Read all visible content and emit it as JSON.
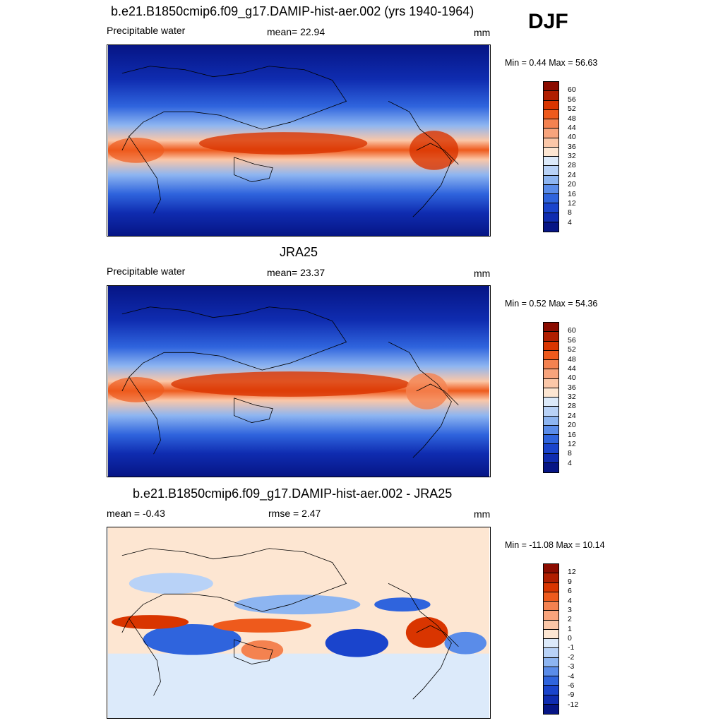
{
  "season": "DJF",
  "panels": [
    {
      "title": "b.e21.B1850cmip6.f09_g17.DAMIP-hist-aer.002 (yrs 1940-1964)",
      "left_label": "Precipitable water",
      "center_label": "mean=  22.94",
      "units": "mm",
      "minmax": "Min =   0.44 Max =  56.63",
      "colorbar": {
        "labels": [
          "60",
          "56",
          "52",
          "48",
          "44",
          "40",
          "36",
          "32",
          "28",
          "24",
          "20",
          "16",
          "12",
          "8",
          "4"
        ],
        "colors": [
          "#8b0c00",
          "#b01e00",
          "#d93500",
          "#ee5a1c",
          "#f48250",
          "#f8a47c",
          "#fbc7a8",
          "#fde6d2",
          "#dceafa",
          "#b8d2f7",
          "#8db5f1",
          "#5a8ce9",
          "#2f64dd",
          "#1a44cc",
          "#0f2cb0",
          "#061585"
        ]
      },
      "chart_data": {
        "type": "heatmap",
        "variable": "Precipitable water",
        "units": "mm",
        "mean": 22.94,
        "min": 0.44,
        "max": 56.63,
        "levels": [
          4,
          8,
          12,
          16,
          20,
          24,
          28,
          32,
          36,
          40,
          44,
          48,
          52,
          56,
          60
        ]
      }
    },
    {
      "title": "JRA25",
      "left_label": "Precipitable water",
      "center_label": "mean=  23.37",
      "units": "mm",
      "minmax": "Min =   0.52 Max =  54.36",
      "colorbar": {
        "labels": [
          "60",
          "56",
          "52",
          "48",
          "44",
          "40",
          "36",
          "32",
          "28",
          "24",
          "20",
          "16",
          "12",
          "8",
          "4"
        ],
        "colors": [
          "#8b0c00",
          "#b01e00",
          "#d93500",
          "#ee5a1c",
          "#f48250",
          "#f8a47c",
          "#fbc7a8",
          "#fde6d2",
          "#dceafa",
          "#b8d2f7",
          "#8db5f1",
          "#5a8ce9",
          "#2f64dd",
          "#1a44cc",
          "#0f2cb0",
          "#061585"
        ]
      },
      "chart_data": {
        "type": "heatmap",
        "variable": "Precipitable water",
        "units": "mm",
        "mean": 23.37,
        "min": 0.52,
        "max": 54.36,
        "levels": [
          4,
          8,
          12,
          16,
          20,
          24,
          28,
          32,
          36,
          40,
          44,
          48,
          52,
          56,
          60
        ]
      }
    },
    {
      "title": "b.e21.B1850cmip6.f09_g17.DAMIP-hist-aer.002 - JRA25",
      "left_label": "mean =  -0.43",
      "center_label": "rmse =   2.47",
      "units": "mm",
      "minmax": "Min = -11.08 Max =  10.14",
      "colorbar": {
        "labels": [
          "12",
          "9",
          "6",
          "4",
          "3",
          "2",
          "1",
          "0",
          "-1",
          "-2",
          "-3",
          "-4",
          "-6",
          "-9",
          "-12"
        ],
        "colors": [
          "#8b0c00",
          "#b01e00",
          "#d93500",
          "#ee5a1c",
          "#f48250",
          "#f8a47c",
          "#fbc7a8",
          "#fde6d2",
          "#dceafa",
          "#b8d2f7",
          "#8db5f1",
          "#5a8ce9",
          "#2f64dd",
          "#1a44cc",
          "#0f2cb0",
          "#061585"
        ]
      },
      "chart_data": {
        "type": "heatmap",
        "variable": "difference",
        "units": "mm",
        "mean": -0.43,
        "rmse": 2.47,
        "min": -11.08,
        "max": 10.14,
        "levels": [
          -12,
          -9,
          -6,
          -4,
          -3,
          -2,
          -1,
          0,
          1,
          2,
          3,
          4,
          6,
          9,
          12
        ]
      }
    }
  ]
}
